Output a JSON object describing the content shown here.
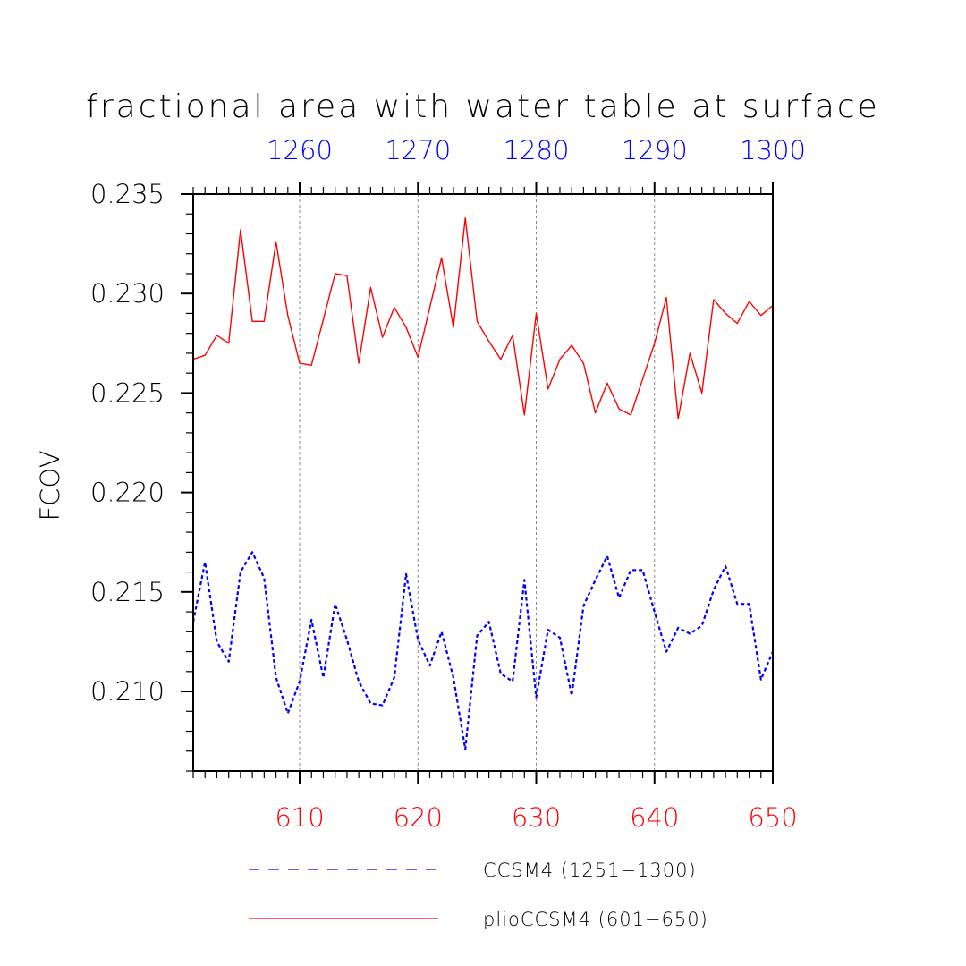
{
  "chart_data": {
    "type": "line",
    "title": "fractional area with water table at surface",
    "ylabel": "FCOV",
    "xlabel_bottom": "",
    "xlabel_top": "",
    "x_bottom": {
      "range": [
        601,
        650
      ],
      "ticks": [
        610,
        620,
        630,
        640,
        650
      ],
      "tick_labels": [
        "610",
        "620",
        "630",
        "640",
        "650"
      ],
      "color": "#ff0000"
    },
    "x_top": {
      "range": [
        1251,
        1300
      ],
      "ticks": [
        1260,
        1270,
        1280,
        1290,
        1300
      ],
      "tick_labels": [
        "1260",
        "1270",
        "1280",
        "1290",
        "1300"
      ],
      "color": "#0000ff"
    },
    "ylim": [
      0.206,
      0.235
    ],
    "y_ticks": [
      0.21,
      0.215,
      0.22,
      0.225,
      0.23,
      0.235
    ],
    "y_tick_labels": [
      "0.210",
      "0.215",
      "0.220",
      "0.225",
      "0.230",
      "0.235"
    ],
    "gridlines_x": [
      610,
      620,
      630,
      640
    ],
    "series": [
      {
        "name": "CCSM4 (1251-1300)",
        "color": "#0000ff",
        "style": "dashed",
        "x": [
          601,
          602,
          603,
          604,
          605,
          606,
          607,
          608,
          609,
          610,
          611,
          612,
          613,
          614,
          615,
          616,
          617,
          618,
          619,
          620,
          621,
          622,
          623,
          624,
          625,
          626,
          627,
          628,
          629,
          630,
          631,
          632,
          633,
          634,
          635,
          636,
          637,
          638,
          639,
          640,
          641,
          642,
          643,
          644,
          645,
          646,
          647,
          648,
          649,
          650
        ],
        "values": [
          0.2135,
          0.2165,
          0.2125,
          0.2115,
          0.216,
          0.217,
          0.2157,
          0.2107,
          0.2089,
          0.2105,
          0.2136,
          0.2107,
          0.2144,
          0.2126,
          0.2105,
          0.2094,
          0.2093,
          0.2107,
          0.2159,
          0.2126,
          0.2113,
          0.213,
          0.2107,
          0.2071,
          0.2128,
          0.2135,
          0.2109,
          0.2105,
          0.2156,
          0.2097,
          0.2131,
          0.2127,
          0.2098,
          0.2143,
          0.2156,
          0.2168,
          0.2147,
          0.2161,
          0.2161,
          0.214,
          0.212,
          0.2132,
          0.2129,
          0.2133,
          0.2151,
          0.2163,
          0.2144,
          0.2144,
          0.2106,
          0.212
        ]
      },
      {
        "name": "plioCCSM4 (601-650)",
        "color": "#ff0000",
        "style": "solid",
        "x": [
          601,
          602,
          603,
          604,
          605,
          606,
          607,
          608,
          609,
          610,
          611,
          612,
          613,
          614,
          615,
          616,
          617,
          618,
          619,
          620,
          621,
          622,
          623,
          624,
          625,
          626,
          627,
          628,
          629,
          630,
          631,
          632,
          633,
          634,
          635,
          636,
          637,
          638,
          639,
          640,
          641,
          642,
          643,
          644,
          645,
          646,
          647,
          648,
          649,
          650
        ],
        "values": [
          0.2267,
          0.2269,
          0.2279,
          0.2275,
          0.2332,
          0.2286,
          0.2286,
          0.2326,
          0.2289,
          0.2265,
          0.2264,
          0.2287,
          0.231,
          0.2309,
          0.2265,
          0.2303,
          0.2278,
          0.2293,
          0.2283,
          0.2268,
          0.2293,
          0.2318,
          0.2283,
          0.2338,
          0.2286,
          0.2276,
          0.2267,
          0.2279,
          0.2239,
          0.229,
          0.2252,
          0.2267,
          0.2274,
          0.2265,
          0.224,
          0.2255,
          0.2242,
          0.2239,
          0.2257,
          0.2275,
          0.2298,
          0.2237,
          0.227,
          0.225,
          0.2297,
          0.229,
          0.2285,
          0.2296,
          0.2289,
          0.2294
        ]
      }
    ],
    "legend": [
      {
        "label": "CCSM4 (1251−1300)",
        "color": "#0000ff",
        "style": "dashed"
      },
      {
        "label": "plioCCSM4 (601−650)",
        "color": "#ff0000",
        "style": "solid"
      }
    ],
    "legend_position": "bottom"
  }
}
